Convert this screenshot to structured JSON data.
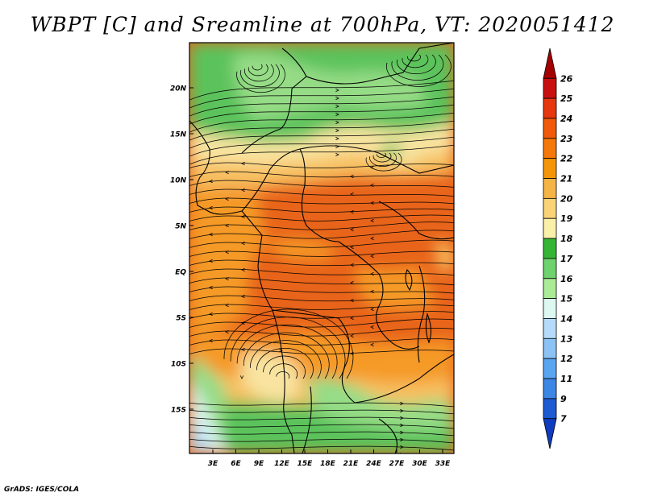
{
  "title": "WBPT [C] and Sreamline at 700hPa, VT: 2020051412",
  "footer": "GrADS: IGES/COLA",
  "axes": {
    "lat_labels": [
      "20N",
      "15N",
      "10N",
      "5N",
      "EQ",
      "5S",
      "10S",
      "15S"
    ],
    "lon_labels": [
      "3E",
      "6E",
      "9E",
      "12E",
      "15E",
      "18E",
      "21E",
      "24E",
      "27E",
      "30E",
      "33E"
    ]
  },
  "colorbar": {
    "labels": [
      "26",
      "25",
      "24",
      "23",
      "22",
      "21",
      "20",
      "19",
      "18",
      "17",
      "16",
      "15",
      "14",
      "13",
      "12",
      "11",
      "9",
      "7"
    ],
    "colors": [
      "#a50000",
      "#c80f0f",
      "#e6370f",
      "#f05a0a",
      "#f5780a",
      "#f5960a",
      "#f5b446",
      "#fad278",
      "#faf0aa",
      "#36b436",
      "#6ed26e",
      "#aaeb96",
      "#dcf8f0",
      "#b4dcfa",
      "#8cc3f5",
      "#5aa5f0",
      "#3c87e6",
      "#1e5ad2",
      "#0f3cbe"
    ]
  },
  "map_colors": {
    "hot": "#e8641a",
    "warm": "#f59a28",
    "mild": "#f7c060",
    "pale": "#f8e4a0",
    "green": "#5cc35c",
    "lightgreen": "#96dc86",
    "cool": "#dcf4f0",
    "blue": "#a8d4f4"
  }
}
